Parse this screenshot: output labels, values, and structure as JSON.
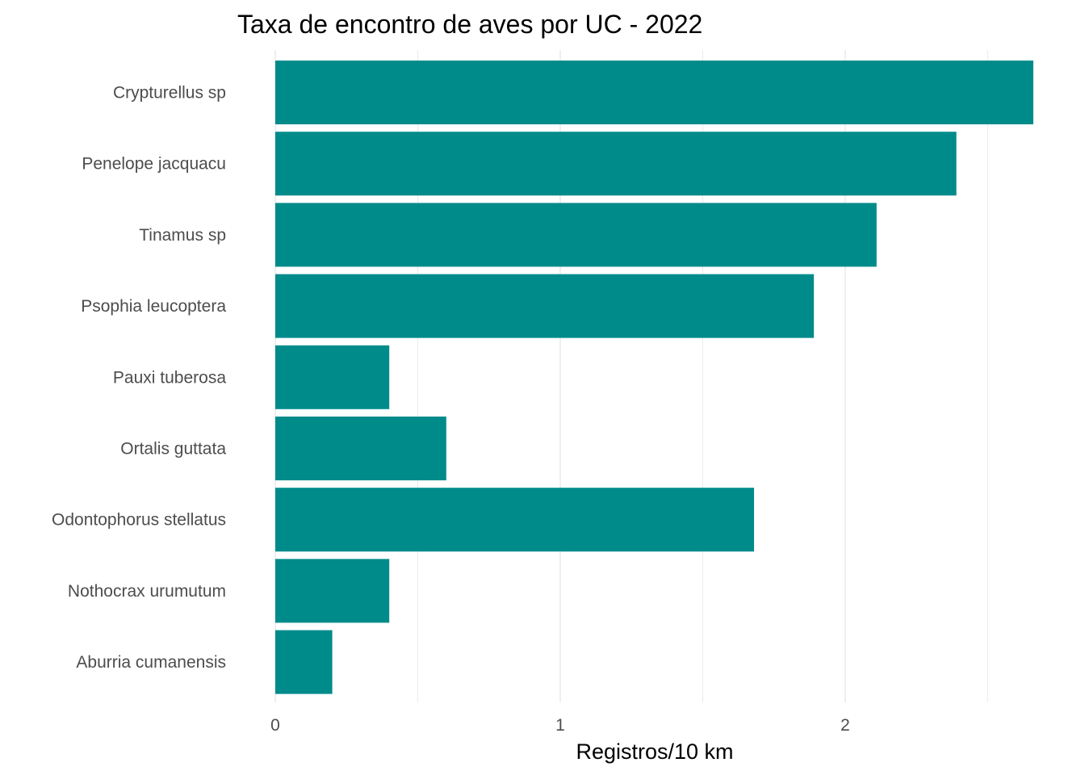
{
  "chart_data": {
    "type": "bar",
    "orientation": "horizontal",
    "title": "Taxa de encontro de aves por UC - 2022",
    "xlabel": "Registros/10 km",
    "ylabel": "",
    "categories": [
      "Crypturellus sp",
      "Penelope jacquacu",
      "Tinamus sp",
      "Psophia leucoptera",
      "Pauxi tuberosa",
      "Ortalis guttata",
      "Odontophorus stellatus",
      "Nothocrax urumutum",
      "Aburria cumanensis"
    ],
    "values": [
      2.66,
      2.39,
      2.11,
      1.89,
      0.4,
      0.6,
      1.68,
      0.4,
      0.2
    ],
    "xlim": [
      0,
      2.66
    ],
    "xticks": [
      "0",
      "1",
      "2"
    ],
    "xtick_values": [
      0,
      1,
      2
    ],
    "minor_grid": [
      0.5,
      1.5,
      2.5
    ],
    "grid": true,
    "legend": "none",
    "bar_color": "#008b8b",
    "grid_color": "#ebebeb"
  }
}
